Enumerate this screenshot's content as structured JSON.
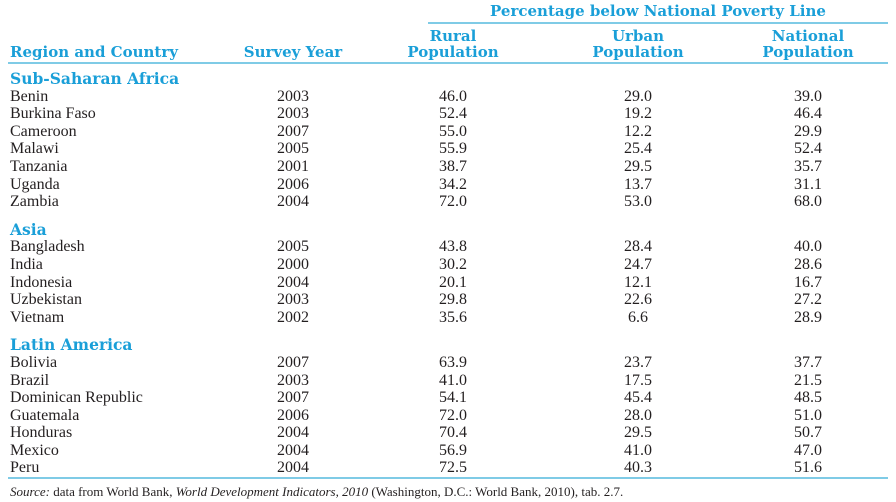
{
  "colors": {
    "accent": "#1a9fd8",
    "rule": "#7fcbe6",
    "text": "#231f20"
  },
  "table": {
    "group_header": "Percentage below National Poverty Line",
    "columns": {
      "region": "Region and Country",
      "year": "Survey Year",
      "rural": [
        "Rural",
        "Population"
      ],
      "urban": [
        "Urban",
        "Population"
      ],
      "national": [
        "National",
        "Population"
      ]
    },
    "sections": [
      {
        "region": "Sub-Saharan Africa",
        "rows": [
          {
            "country": "Benin",
            "year": "2003",
            "rural": "46.0",
            "urban": "29.0",
            "national": "39.0"
          },
          {
            "country": "Burkina Faso",
            "year": "2003",
            "rural": "52.4",
            "urban": "19.2",
            "national": "46.4"
          },
          {
            "country": "Cameroon",
            "year": "2007",
            "rural": "55.0",
            "urban": "12.2",
            "national": "29.9"
          },
          {
            "country": "Malawi",
            "year": "2005",
            "rural": "55.9",
            "urban": "25.4",
            "national": "52.4"
          },
          {
            "country": "Tanzania",
            "year": "2001",
            "rural": "38.7",
            "urban": "29.5",
            "national": "35.7"
          },
          {
            "country": "Uganda",
            "year": "2006",
            "rural": "34.2",
            "urban": "13.7",
            "national": "31.1"
          },
          {
            "country": "Zambia",
            "year": "2004",
            "rural": "72.0",
            "urban": "53.0",
            "national": "68.0"
          }
        ]
      },
      {
        "region": "Asia",
        "rows": [
          {
            "country": "Bangladesh",
            "year": "2005",
            "rural": "43.8",
            "urban": "28.4",
            "national": "40.0"
          },
          {
            "country": "India",
            "year": "2000",
            "rural": "30.2",
            "urban": "24.7",
            "national": "28.6"
          },
          {
            "country": "Indonesia",
            "year": "2004",
            "rural": "20.1",
            "urban": "12.1",
            "national": "16.7"
          },
          {
            "country": "Uzbekistan",
            "year": "2003",
            "rural": "29.8",
            "urban": "22.6",
            "national": "27.2"
          },
          {
            "country": "Vietnam",
            "year": "2002",
            "rural": "35.6",
            "urban": "6.6",
            "national": "28.9"
          }
        ]
      },
      {
        "region": "Latin America",
        "rows": [
          {
            "country": "Bolivia",
            "year": "2007",
            "rural": "63.9",
            "urban": "23.7",
            "national": "37.7"
          },
          {
            "country": "Brazil",
            "year": "2003",
            "rural": "41.0",
            "urban": "17.5",
            "national": "21.5"
          },
          {
            "country": "Dominican Republic",
            "year": "2007",
            "rural": "54.1",
            "urban": "45.4",
            "national": "48.5"
          },
          {
            "country": "Guatemala",
            "year": "2006",
            "rural": "72.0",
            "urban": "28.0",
            "national": "51.0"
          },
          {
            "country": "Honduras",
            "year": "2004",
            "rural": "70.4",
            "urban": "29.5",
            "national": "50.7"
          },
          {
            "country": "Mexico",
            "year": "2004",
            "rural": "56.9",
            "urban": "41.0",
            "national": "47.0"
          },
          {
            "country": "Peru",
            "year": "2004",
            "rural": "72.5",
            "urban": "40.3",
            "national": "51.6"
          }
        ]
      }
    ]
  },
  "source": {
    "label": "Source:",
    "text1": " data from World Bank, ",
    "italic": "World Development Indicators, 2010",
    "text2": " (Washington, D.C.: World Bank, 2010), tab. 2.7."
  }
}
